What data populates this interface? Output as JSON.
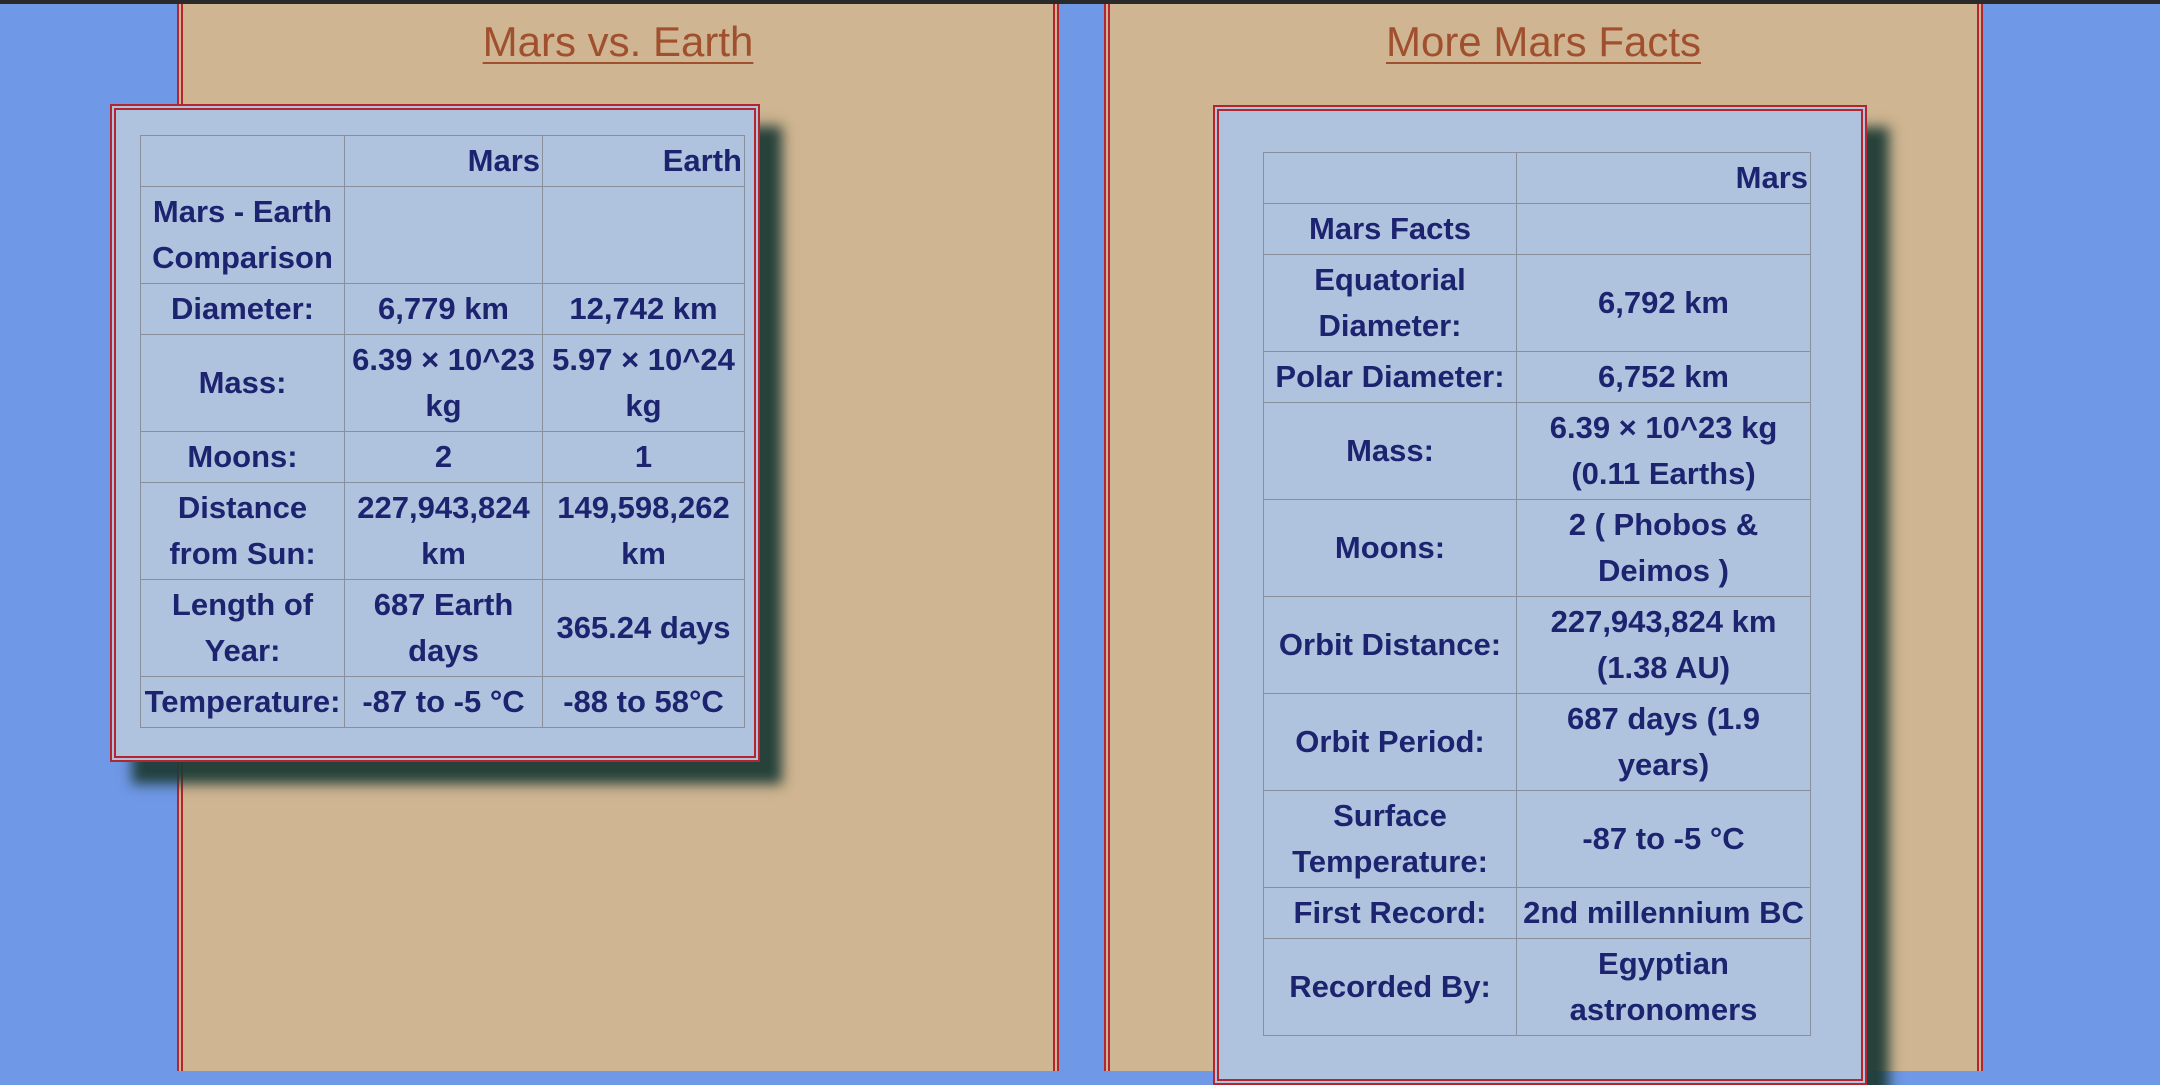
{
  "left_panel": {
    "title": "Mars vs. Earth",
    "table": {
      "headers": [
        "",
        "Mars",
        "Earth"
      ],
      "rows": [
        [
          "Mars - Earth Comparison",
          "",
          ""
        ],
        [
          "Diameter:",
          "6,779 km",
          "12,742 km"
        ],
        [
          "Mass:",
          "6.39 × 10^23 kg",
          "5.97 × 10^24 kg"
        ],
        [
          "Moons:",
          "2",
          "1"
        ],
        [
          "Distance from Sun:",
          "227,943,824 km",
          "149,598,262 km"
        ],
        [
          "Length of Year:",
          "687 Earth days",
          "365.24 days"
        ],
        [
          "Temperature:",
          "-87 to -5 °C",
          "-88 to 58°C"
        ]
      ]
    }
  },
  "right_panel": {
    "title": "More Mars Facts",
    "table": {
      "headers": [
        "",
        "Mars"
      ],
      "rows": [
        [
          "Mars Facts",
          ""
        ],
        [
          "Equatorial Diameter:",
          "6,792 km"
        ],
        [
          "Polar Diameter:",
          "6,752 km"
        ],
        [
          "Mass:",
          "6.39 × 10^23 kg (0.11 Earths)"
        ],
        [
          "Moons:",
          "2 ( Phobos & Deimos )"
        ],
        [
          "Orbit Distance:",
          "227,943,824 km (1.38 AU)"
        ],
        [
          "Orbit Period:",
          "687 days (1.9 years)"
        ],
        [
          "Surface Temperature:",
          "-87 to -5 °C"
        ],
        [
          "First Record:",
          "2nd millennium BC"
        ],
        [
          "Recorded By:",
          "Egyptian astronomers"
        ]
      ]
    }
  },
  "colors": {
    "page_background": "#6f98e6",
    "panel_background": "#cfb591",
    "panel_border": "#b3262f",
    "title_link": "#a0502e",
    "table_background": "#b0c3de",
    "table_text": "#1c2470"
  }
}
